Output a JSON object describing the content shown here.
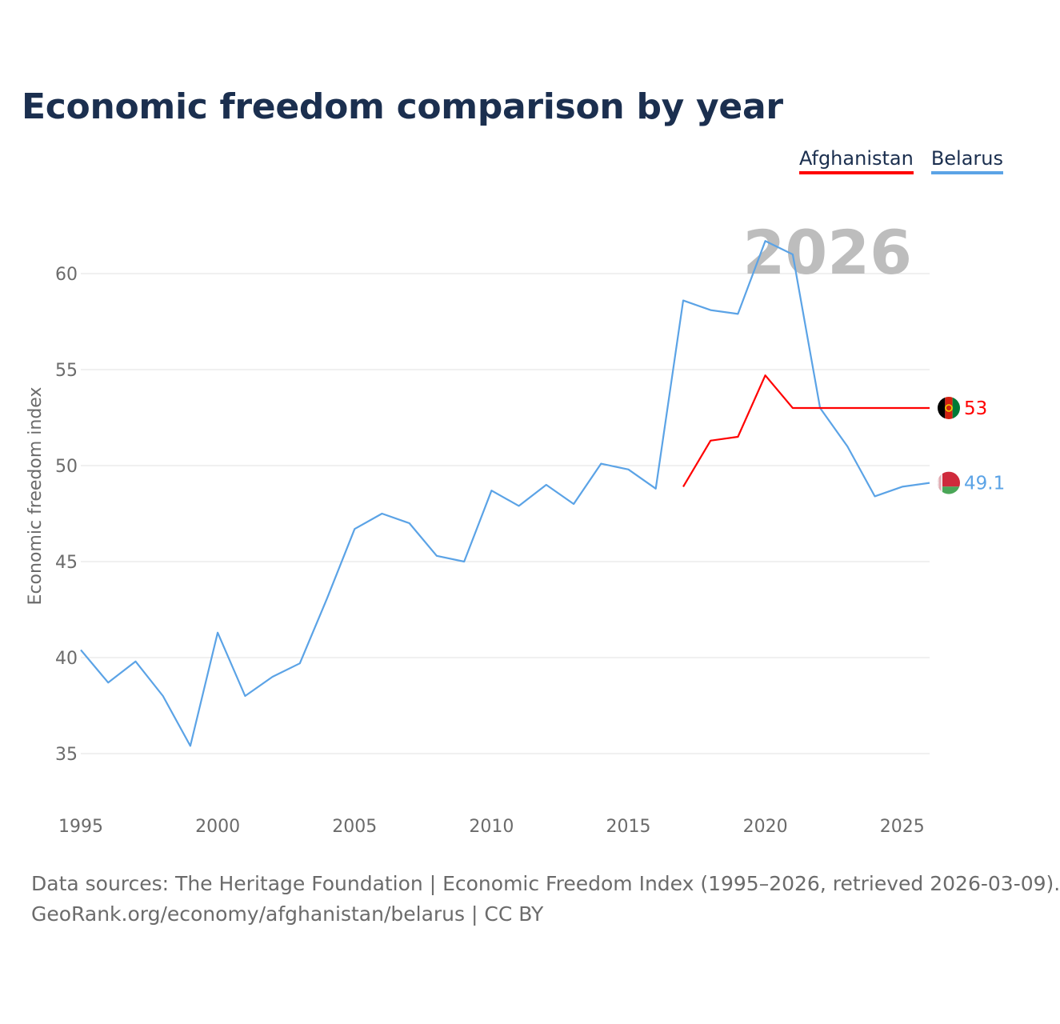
{
  "page": {
    "title": "Economic freedom comparison by year",
    "year_watermark": "2026",
    "footer": {
      "sources": "Data sources: The Heritage Foundation | Economic Freedom Index (1995–2026, retrieved 2026-03-09).",
      "credit": "GeoRank.org/economy/afghanistan/belarus | CC BY"
    }
  },
  "legend": [
    {
      "name": "Afghanistan",
      "color": "#ff0000"
    },
    {
      "name": "Belarus",
      "color": "#5ba3e6"
    }
  ],
  "chart_data": {
    "type": "line",
    "title": "Economic freedom comparison by year",
    "xlabel": "",
    "ylabel": "Economic freedom index",
    "xlim": [
      1995,
      2026
    ],
    "ylim": [
      33,
      63
    ],
    "xticks": [
      1995,
      2000,
      2005,
      2010,
      2015,
      2020,
      2025
    ],
    "yticks": [
      35,
      40,
      45,
      50,
      55,
      60
    ],
    "grid": true,
    "series": [
      {
        "name": "Afghanistan",
        "color": "#ff0000",
        "flag": "afghanistan-flag",
        "end_label": "53",
        "points": [
          [
            2017,
            48.9
          ],
          [
            2018,
            51.3
          ],
          [
            2019,
            51.5
          ],
          [
            2020,
            54.7
          ],
          [
            2021,
            53.0
          ],
          [
            2026,
            53.0
          ]
        ]
      },
      {
        "name": "Belarus",
        "color": "#5ba3e6",
        "flag": "belarus-flag",
        "end_label": "49.1",
        "points": [
          [
            1995,
            40.4
          ],
          [
            1996,
            38.7
          ],
          [
            1997,
            39.8
          ],
          [
            1998,
            38.0
          ],
          [
            1999,
            35.4
          ],
          [
            2000,
            41.3
          ],
          [
            2001,
            38.0
          ],
          [
            2002,
            39.0
          ],
          [
            2003,
            39.7
          ],
          [
            2004,
            43.1
          ],
          [
            2005,
            46.7
          ],
          [
            2006,
            47.5
          ],
          [
            2007,
            47.0
          ],
          [
            2008,
            45.3
          ],
          [
            2009,
            45.0
          ],
          [
            2010,
            48.7
          ],
          [
            2011,
            47.9
          ],
          [
            2012,
            49.0
          ],
          [
            2013,
            48.0
          ],
          [
            2014,
            50.1
          ],
          [
            2015,
            49.8
          ],
          [
            2016,
            48.8
          ],
          [
            2017,
            58.6
          ],
          [
            2018,
            58.1
          ],
          [
            2019,
            57.9
          ],
          [
            2020,
            61.7
          ],
          [
            2021,
            61.0
          ],
          [
            2022,
            53.0
          ],
          [
            2023,
            51.0
          ],
          [
            2024,
            48.4
          ],
          [
            2025,
            48.9
          ],
          [
            2026,
            49.1
          ]
        ]
      }
    ]
  }
}
